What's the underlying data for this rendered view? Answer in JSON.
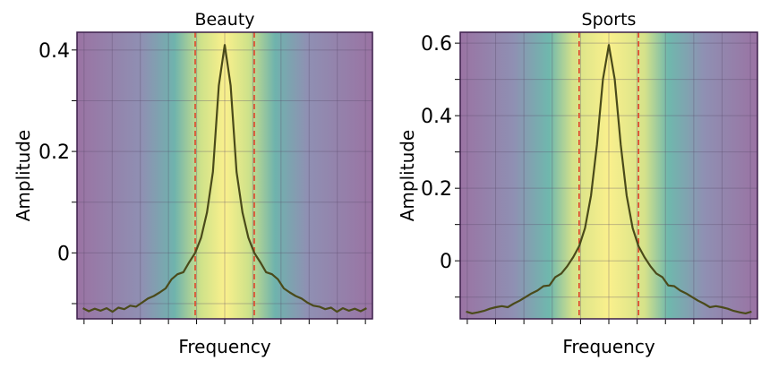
{
  "chart_data": [
    {
      "type": "line",
      "title": "Beauty",
      "xlabel": "Frequency",
      "ylabel": "Amplitude",
      "ylim": [
        -0.13,
        0.435
      ],
      "yticks": [
        0,
        0.2,
        0.4
      ],
      "ytick_labels": [
        "0",
        "0.2",
        "0.4"
      ],
      "xlim": [
        -25,
        25
      ],
      "x_tick_count": 11,
      "shaded_band": [
        -5,
        5
      ],
      "dashed_lines": [
        -5,
        5
      ],
      "grid": true,
      "background": "viridis-gradient",
      "series": [
        {
          "x": [
            -24,
            -23,
            -22,
            -21,
            -20,
            -19,
            -18,
            -17,
            -16,
            -15,
            -14,
            -13,
            -12,
            -11,
            -10,
            -9,
            -8,
            -7,
            -6,
            -5,
            -4,
            -3,
            -2,
            -1,
            0,
            1,
            2,
            3,
            4,
            5,
            6,
            7,
            8,
            9,
            10,
            11,
            12,
            13,
            14,
            15,
            16,
            17,
            18,
            19,
            20,
            21,
            22,
            23,
            24
          ],
          "values": [
            -0.109,
            -0.115,
            -0.11,
            -0.114,
            -0.109,
            -0.116,
            -0.108,
            -0.111,
            -0.104,
            -0.106,
            -0.098,
            -0.09,
            -0.085,
            -0.078,
            -0.07,
            -0.052,
            -0.042,
            -0.038,
            -0.018,
            0.0,
            0.03,
            0.08,
            0.16,
            0.33,
            0.41,
            0.33,
            0.16,
            0.08,
            0.03,
            0.0,
            -0.018,
            -0.038,
            -0.042,
            -0.052,
            -0.07,
            -0.078,
            -0.085,
            -0.09,
            -0.098,
            -0.104,
            -0.106,
            -0.111,
            -0.108,
            -0.116,
            -0.109,
            -0.114,
            -0.11,
            -0.115,
            -0.109
          ]
        }
      ]
    },
    {
      "type": "line",
      "title": "Sports",
      "xlabel": "Frequency",
      "ylabel": "Amplitude",
      "ylim": [
        -0.16,
        0.63
      ],
      "yticks": [
        0,
        0.2,
        0.4,
        0.6
      ],
      "ytick_labels": [
        "0",
        "0.2",
        "0.4",
        "0.6"
      ],
      "xlim": [
        -25,
        25
      ],
      "x_tick_count": 11,
      "shaded_band": [
        -5,
        5
      ],
      "dashed_lines": [
        -5,
        5
      ],
      "grid": true,
      "background": "viridis-gradient",
      "series": [
        {
          "x": [
            -24,
            -23,
            -22,
            -21,
            -20,
            -19,
            -18,
            -17,
            -16,
            -15,
            -14,
            -13,
            -12,
            -11,
            -10,
            -9,
            -8,
            -7,
            -6,
            -5,
            -4,
            -3,
            -2,
            -1,
            0,
            1,
            2,
            3,
            4,
            5,
            6,
            7,
            8,
            9,
            10,
            11,
            12,
            13,
            14,
            15,
            16,
            17,
            18,
            19,
            20,
            21,
            22,
            23,
            24
          ],
          "values": [
            -0.14,
            -0.145,
            -0.142,
            -0.138,
            -0.132,
            -0.128,
            -0.125,
            -0.128,
            -0.118,
            -0.11,
            -0.1,
            -0.09,
            -0.082,
            -0.07,
            -0.068,
            -0.045,
            -0.035,
            -0.015,
            0.01,
            0.04,
            0.09,
            0.18,
            0.32,
            0.5,
            0.595,
            0.5,
            0.32,
            0.18,
            0.09,
            0.04,
            0.01,
            -0.015,
            -0.035,
            -0.045,
            -0.068,
            -0.07,
            -0.082,
            -0.09,
            -0.1,
            -0.11,
            -0.118,
            -0.128,
            -0.125,
            -0.128,
            -0.132,
            -0.138,
            -0.142,
            -0.145,
            -0.14
          ]
        }
      ]
    }
  ],
  "colors": {
    "line": "#4a4a1a",
    "dashed": "#e0442a",
    "frame": "#3b1e4a",
    "gradient_edge": "#9a73a3",
    "gradient_mid1": "#6fa0ad",
    "gradient_mid2": "#6fc9a4",
    "gradient_center": "#faf08c"
  }
}
